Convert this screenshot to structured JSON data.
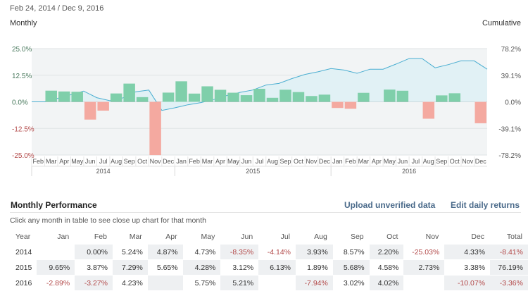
{
  "header": {
    "date_range": "Feb 24, 2014 / Dec 9, 2016",
    "monthly_label": "Monthly",
    "cumulative_label": "Cumulative"
  },
  "colors": {
    "positive_bar": "#7fcfaa",
    "negative_bar": "#f4a9a0",
    "cumulative_line": "#4aaed1",
    "cumulative_fill": "#e1f1f5",
    "left_axis_text": "#4a7a5e",
    "neg_text": "#b34a4a",
    "link": "#4a6a8a"
  },
  "chart_data": {
    "type": "bar",
    "left_axis_ticks": [
      "25.0%",
      "12.5%",
      "0.0%",
      "-12.5%",
      "-25.0%"
    ],
    "right_axis_ticks": [
      "78.2%",
      "39.1%",
      "0.0%",
      "-39.1%",
      "-78.2%"
    ],
    "ylim_monthly": [
      -25,
      25
    ],
    "ylim_cumulative": [
      -78.2,
      78.2
    ],
    "month_labels": [
      "Feb",
      "Mar",
      "Apr",
      "May",
      "Jun",
      "Jul",
      "Aug",
      "Sep",
      "Oct",
      "Nov",
      "Dec",
      "Jan",
      "Feb",
      "Mar",
      "Apr",
      "May",
      "Jun",
      "Jul",
      "Aug",
      "Sep",
      "Oct",
      "Nov",
      "Dec",
      "Jan",
      "Feb",
      "Mar",
      "Apr",
      "May",
      "Jun",
      "Jul",
      "Aug",
      "Sep",
      "Oct",
      "Nov",
      "Dec"
    ],
    "year_labels": [
      "2014",
      "2015",
      "2016"
    ],
    "monthly_values": [
      5.24,
      4.87,
      4.73,
      -8.35,
      -4.14,
      3.93,
      8.57,
      2.2,
      -25.03,
      4.33,
      9.65,
      3.87,
      7.29,
      5.65,
      4.28,
      3.12,
      6.13,
      1.89,
      5.68,
      4.58,
      2.73,
      3.38,
      -2.89,
      -3.27,
      4.23,
      0,
      5.75,
      5.21,
      0,
      -7.94,
      3.02,
      4.02,
      0,
      -10.07
    ],
    "monthly_offset": 1,
    "cumulative": [
      0.0,
      0.0,
      5.2,
      10.4,
      15.7,
      6.1,
      1.7,
      5.7,
      14.8,
      17.3,
      -12.6,
      -8.8,
      -4.4,
      -1.1,
      3.4,
      9.3,
      13.9,
      17.4,
      24.6,
      27.0,
      34.2,
      40.3,
      44.1,
      48.9,
      46.7,
      42.0,
      48.0,
      48.0,
      55.5,
      63.6,
      63.6,
      50.0,
      54.6,
      60.3,
      60.3,
      48.0
    ]
  },
  "performance": {
    "title": "Monthly Performance",
    "upload_label": "Upload unverified data",
    "edit_label": "Edit daily returns",
    "hint": "Click any month in table to see close up chart for that month",
    "columns": [
      "Year",
      "Jan",
      "Feb",
      "Mar",
      "Apr",
      "May",
      "Jun",
      "Jul",
      "Aug",
      "Sep",
      "Oct",
      "Nov",
      "Dec",
      "Total"
    ],
    "rows": [
      {
        "year": "2014",
        "cells": [
          "",
          "0.00%",
          "5.24%",
          "4.87%",
          "4.73%",
          "-8.35%",
          "-4.14%",
          "3.93%",
          "8.57%",
          "2.20%",
          "-25.03%",
          "4.33%"
        ],
        "total": "-8.41%"
      },
      {
        "year": "2015",
        "cells": [
          "9.65%",
          "3.87%",
          "7.29%",
          "5.65%",
          "4.28%",
          "3.12%",
          "6.13%",
          "1.89%",
          "5.68%",
          "4.58%",
          "2.73%",
          "3.38%"
        ],
        "total": "76.19%"
      },
      {
        "year": "2016",
        "cells": [
          "-2.89%",
          "-3.27%",
          "4.23%",
          "",
          "5.75%",
          "5.21%",
          "",
          "-7.94%",
          "3.02%",
          "4.02%",
          "",
          "-10.07%"
        ],
        "total": "-3.36%"
      }
    ]
  }
}
